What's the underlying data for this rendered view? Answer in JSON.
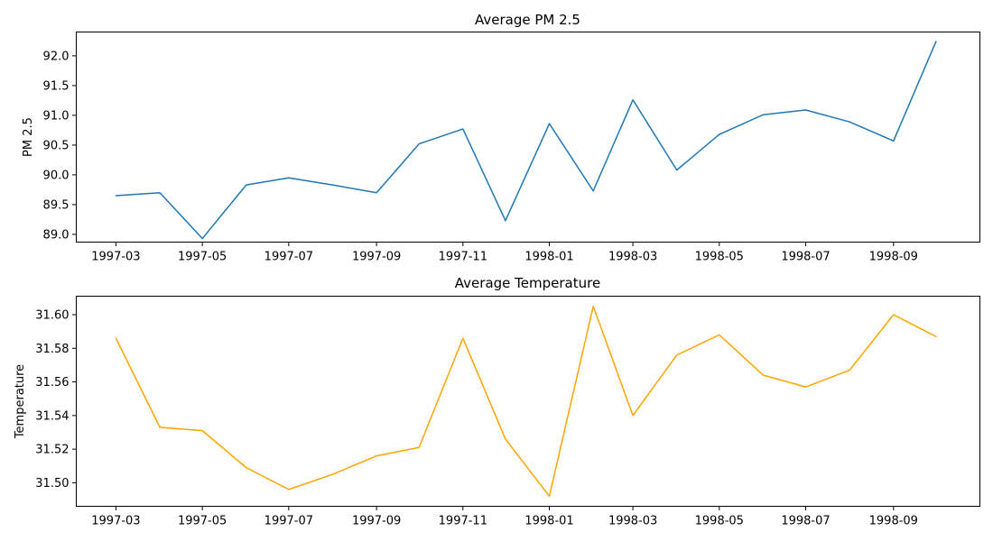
{
  "chart_data": [
    {
      "type": "line",
      "title": "Average PM 2.5",
      "xlabel": "",
      "ylabel": "PM 2.5",
      "x": [
        "1997-03-01",
        "1997-04-01",
        "1997-05-01",
        "1997-06-01",
        "1997-07-01",
        "1997-08-01",
        "1997-09-01",
        "1997-10-01",
        "1997-11-01",
        "1997-12-01",
        "1998-01-01",
        "1998-02-01",
        "1998-03-01",
        "1998-04-01",
        "1998-05-01",
        "1998-06-01",
        "1998-07-01",
        "1998-08-01",
        "1998-09-01",
        "1998-10-01"
      ],
      "values": [
        89.65,
        89.7,
        88.93,
        89.83,
        89.95,
        89.83,
        89.7,
        90.52,
        90.77,
        89.23,
        90.86,
        89.73,
        91.26,
        90.08,
        90.68,
        91.01,
        91.09,
        90.89,
        90.57,
        92.24
      ],
      "xticks": [
        "1997-03",
        "1997-05",
        "1997-07",
        "1997-09",
        "1997-11",
        "1998-01",
        "1998-03",
        "1998-05",
        "1998-07",
        "1998-09"
      ],
      "yticks": [
        "89.0",
        "89.5",
        "90.0",
        "90.5",
        "91.0",
        "91.5",
        "92.0"
      ],
      "ylim": [
        88.87,
        92.4
      ],
      "xlim": [
        "1997-02-01",
        "1998-11-01"
      ],
      "color": "#1f77b4",
      "grid": false
    },
    {
      "type": "line",
      "title": "Average Temperature",
      "xlabel": "",
      "ylabel": "Temperature",
      "x": [
        "1997-03-01",
        "1997-04-01",
        "1997-05-01",
        "1997-06-01",
        "1997-07-01",
        "1997-08-01",
        "1997-09-01",
        "1997-10-01",
        "1997-11-01",
        "1997-12-01",
        "1998-01-01",
        "1998-02-01",
        "1998-03-01",
        "1998-04-01",
        "1998-05-01",
        "1998-06-01",
        "1998-07-01",
        "1998-08-01",
        "1998-09-01",
        "1998-10-01"
      ],
      "values": [
        31.586,
        31.533,
        31.531,
        31.509,
        31.496,
        31.505,
        31.516,
        31.521,
        31.586,
        31.526,
        31.492,
        31.605,
        31.54,
        31.576,
        31.588,
        31.564,
        31.557,
        31.567,
        31.6,
        31.587
      ],
      "xticks": [
        "1997-03",
        "1997-05",
        "1997-07",
        "1997-09",
        "1997-11",
        "1998-01",
        "1998-03",
        "1998-05",
        "1998-07",
        "1998-09"
      ],
      "yticks": [
        "31.50",
        "31.52",
        "31.54",
        "31.56",
        "31.58",
        "31.60"
      ],
      "ylim": [
        31.486,
        31.611
      ],
      "xlim": [
        "1997-02-01",
        "1998-11-01"
      ],
      "color": "#ffa500",
      "grid": false
    }
  ]
}
